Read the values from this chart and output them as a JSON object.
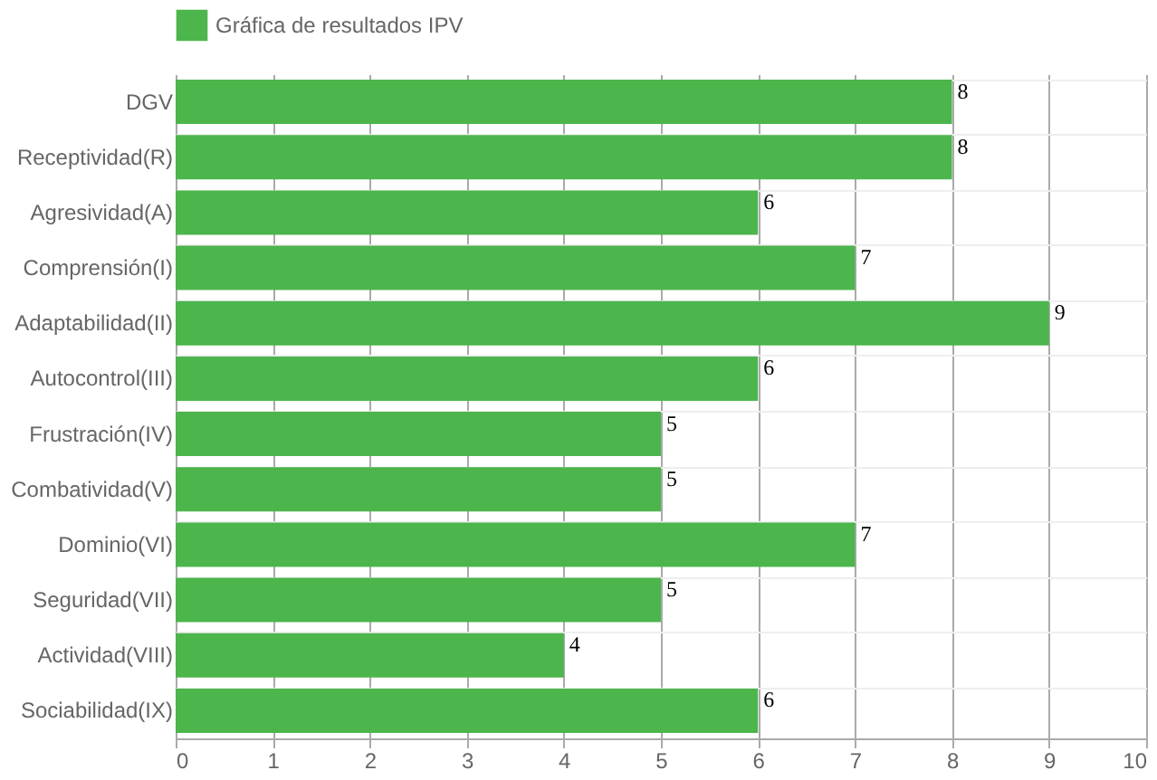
{
  "chart_data": {
    "type": "bar",
    "orientation": "horizontal",
    "categories": [
      "DGV",
      "Receptividad(R)",
      "Agresividad(A)",
      "Comprensión(I)",
      "Adaptabilidad(II)",
      "Autocontrol(III)",
      "Frustración(IV)",
      "Combatividad(V)",
      "Dominio(VI)",
      "Seguridad(VII)",
      "Actividad(VIII)",
      "Sociabilidad(IX)"
    ],
    "series": [
      {
        "name": "Gráfica de resultados IPV",
        "color": "#4cb54c",
        "values": [
          8,
          8,
          6,
          7,
          9,
          6,
          5,
          5,
          7,
          5,
          4,
          6
        ]
      }
    ],
    "xlim": [
      0,
      10
    ],
    "xticks": [
      0,
      1,
      2,
      3,
      4,
      5,
      6,
      7,
      8,
      9,
      10
    ],
    "grid": true,
    "legend": "top",
    "data_labels": true
  }
}
